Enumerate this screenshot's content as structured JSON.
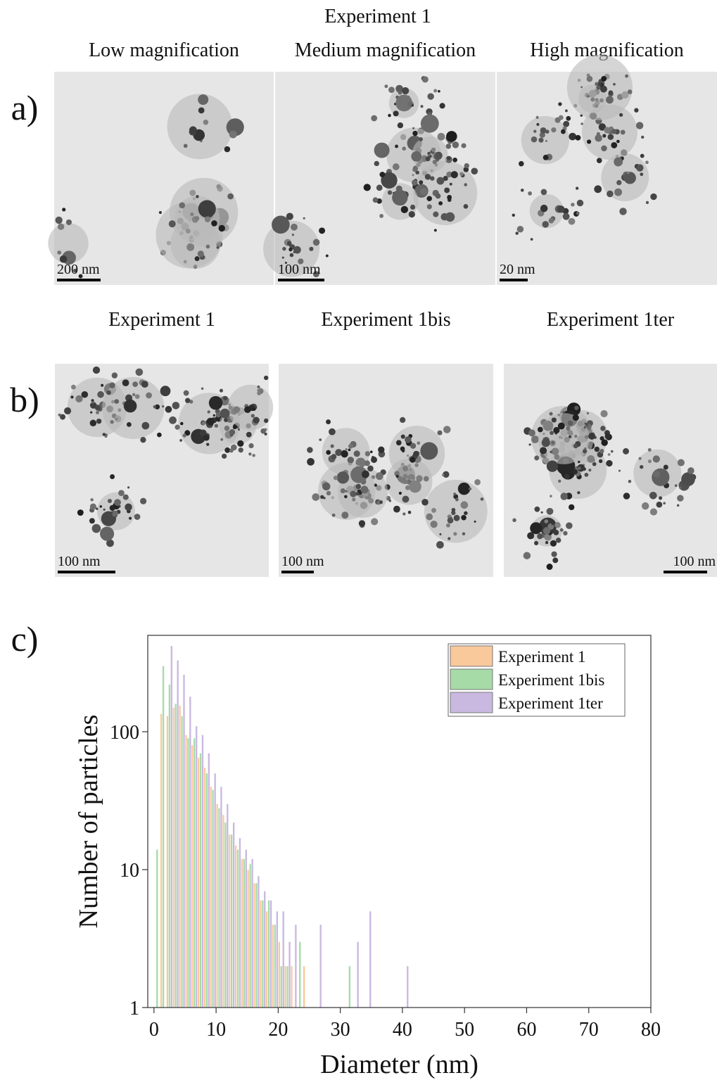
{
  "figure": {
    "panel_a": {
      "label": "a)",
      "title": "Experiment 1",
      "images": [
        {
          "caption": "Low magnification",
          "scale_bar": "200 nm"
        },
        {
          "caption": "Medium magnification",
          "scale_bar": "100 nm"
        },
        {
          "caption": "High magnification",
          "scale_bar": "20 nm"
        }
      ]
    },
    "panel_b": {
      "label": "b)",
      "images": [
        {
          "caption": "Experiment 1",
          "scale_bar": "100 nm"
        },
        {
          "caption": "Experiment 1bis",
          "scale_bar": "100 nm"
        },
        {
          "caption": "Experiment 1ter",
          "scale_bar": "100 nm"
        }
      ]
    },
    "panel_c": {
      "label": "c)"
    }
  },
  "chart_data": {
    "type": "histogram",
    "x_label": "Diameter (nm)",
    "y_label": "Number of particles",
    "bins": [
      0,
      1,
      2,
      3,
      4,
      5,
      6,
      7,
      8,
      9,
      10,
      11,
      12,
      13,
      14,
      15,
      16,
      17,
      18,
      19,
      20,
      21,
      22,
      23,
      24,
      25,
      26,
      27,
      28,
      29,
      30,
      31,
      32,
      33,
      34,
      35,
      36,
      37,
      38,
      39,
      40,
      41
    ],
    "series": [
      {
        "name": "Experiment 1",
        "color": "#f9c89b",
        "values": [
          null,
          135,
          130,
          150,
          155,
          95,
          80,
          65,
          55,
          40,
          30,
          25,
          18,
          15,
          12,
          10,
          8,
          6,
          5,
          4,
          3,
          2,
          2,
          1,
          2,
          null,
          null,
          null,
          null,
          null,
          null,
          null,
          null,
          null,
          null,
          null,
          null,
          null,
          null,
          null,
          null
        ]
      },
      {
        "name": "Experiment 1bis",
        "color": "#a6dba8",
        "values": [
          14,
          300,
          220,
          160,
          130,
          90,
          90,
          70,
          50,
          38,
          28,
          22,
          18,
          14,
          12,
          11,
          8,
          6,
          6,
          4,
          2,
          2,
          1,
          3,
          null,
          null,
          null,
          null,
          null,
          null,
          null,
          2,
          null,
          null,
          null,
          null,
          null,
          null,
          null,
          null,
          null
        ]
      },
      {
        "name": "Experiment 1ter",
        "color": "#c9b8e0",
        "values": [
          null,
          null,
          420,
          330,
          260,
          180,
          110,
          95,
          70,
          50,
          40,
          30,
          22,
          17,
          14,
          12,
          9,
          7,
          6,
          5,
          5,
          3,
          4,
          null,
          null,
          null,
          4,
          null,
          null,
          null,
          null,
          null,
          3,
          null,
          5,
          null,
          null,
          null,
          null,
          null,
          2
        ]
      }
    ],
    "xlim": [
      -1,
      80
    ],
    "xticks": [
      0,
      10,
      20,
      30,
      40,
      50,
      60,
      70,
      80
    ],
    "ylim": [
      1,
      500
    ],
    "yticks": [
      1,
      10,
      100
    ],
    "log_scale": "y",
    "legend": "top-right"
  }
}
